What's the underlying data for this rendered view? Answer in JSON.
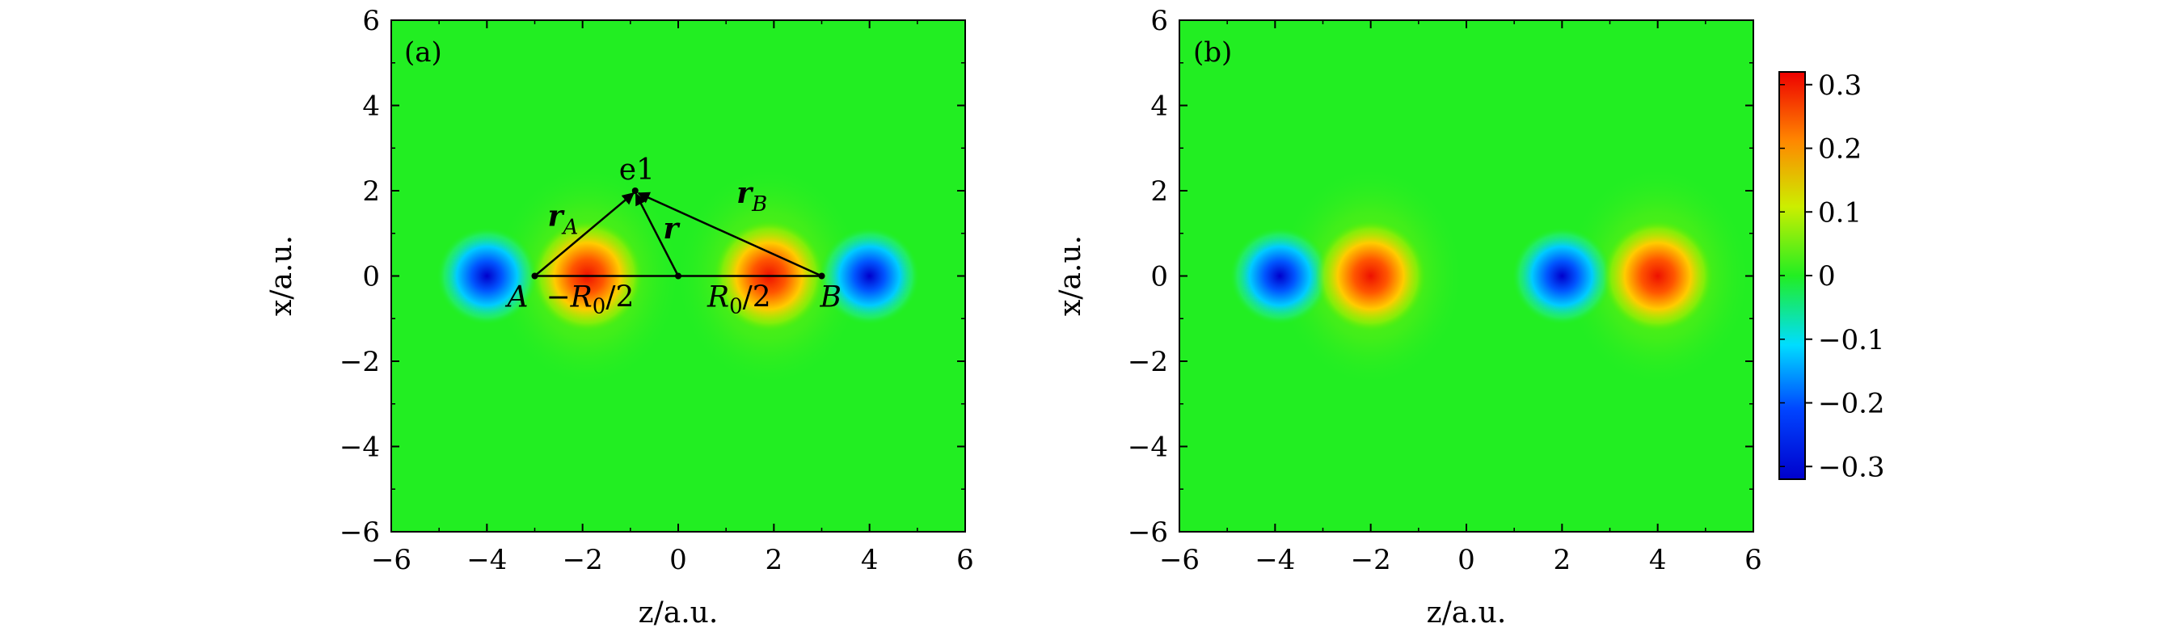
{
  "chart_data": [
    {
      "type": "heatmap",
      "panel_label": "(a)",
      "xlabel": "z/a.u.",
      "ylabel": "x/a.u.",
      "xlim": [
        -6,
        6
      ],
      "ylim": [
        -6,
        6
      ],
      "xticks": [
        -6,
        -4,
        -2,
        0,
        2,
        4,
        6
      ],
      "yticks": [
        -6,
        -4,
        -2,
        0,
        2,
        4,
        6
      ],
      "xtick_labels": [
        "−6",
        "−4",
        "−2",
        "0",
        "2",
        "4",
        "6"
      ],
      "ytick_labels": [
        "−6",
        "−4",
        "−2",
        "0",
        "2",
        "4",
        "6"
      ],
      "blobs": [
        {
          "z": -4.0,
          "x": 0,
          "value": -0.3
        },
        {
          "z": -1.9,
          "x": 0,
          "value": 0.3
        },
        {
          "z": 1.9,
          "x": 0,
          "value": 0.3
        },
        {
          "z": 4.0,
          "x": 0,
          "value": -0.3
        }
      ],
      "annotations": {
        "point_A": {
          "z": -3,
          "x": 0,
          "label": "A"
        },
        "point_B": {
          "z": 3,
          "x": 0,
          "label": "B"
        },
        "point_e1": {
          "z": -0.9,
          "x": 2,
          "label": "e1"
        },
        "origin": {
          "z": 0,
          "x": 0
        },
        "vector_rA": "r",
        "vector_rA_sub": "A",
        "vector_rB": "r",
        "vector_rB_sub": "B",
        "vector_r": "r",
        "minus_R0_half": "−R",
        "R0_half": "R",
        "R_sub": "0",
        "half": "/2"
      }
    },
    {
      "type": "heatmap",
      "panel_label": "(b)",
      "xlabel": "z/a.u.",
      "ylabel": "x/a.u.",
      "xlim": [
        -6,
        6
      ],
      "ylim": [
        -6,
        6
      ],
      "xticks": [
        -6,
        -4,
        -2,
        0,
        2,
        4,
        6
      ],
      "yticks": [
        -6,
        -4,
        -2,
        0,
        2,
        4,
        6
      ],
      "xtick_labels": [
        "−6",
        "−4",
        "−2",
        "0",
        "2",
        "4",
        "6"
      ],
      "ytick_labels": [
        "−6",
        "−4",
        "−2",
        "0",
        "2",
        "4",
        "6"
      ],
      "blobs": [
        {
          "z": -3.9,
          "x": 0,
          "value": -0.3
        },
        {
          "z": -2.0,
          "x": 0,
          "value": 0.3
        },
        {
          "z": 2.0,
          "x": 0,
          "value": -0.3
        },
        {
          "z": 4.0,
          "x": 0,
          "value": 0.3
        }
      ]
    }
  ],
  "colorbar": {
    "range": [
      -0.32,
      0.32
    ],
    "ticks": [
      0.3,
      0.2,
      0.1,
      0,
      -0.1,
      -0.2,
      -0.3
    ],
    "tick_labels": [
      "0.3",
      "0.2",
      "0.1",
      "0",
      "−0.1",
      "−0.2",
      "−0.3"
    ],
    "colormap": "jet",
    "colors": [
      "#0000cc",
      "#0044ff",
      "#00ddff",
      "#22ee22",
      "#ccee00",
      "#ff8800",
      "#ee0000"
    ]
  }
}
